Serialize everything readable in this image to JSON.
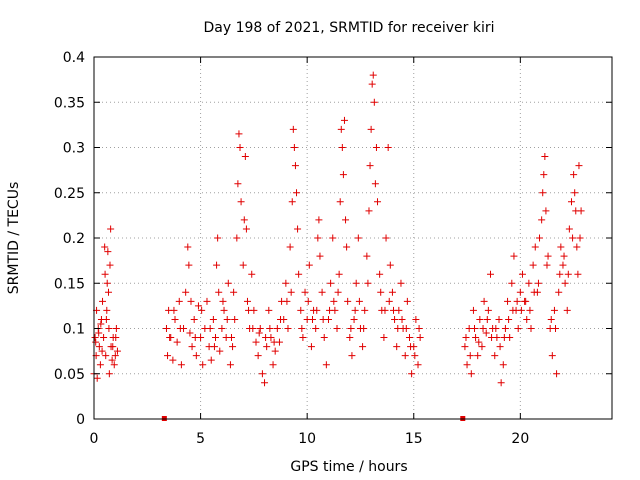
{
  "chart_data": {
    "type": "scatter",
    "title": "Day 198 of 2021, SRMTID for receiver kiri",
    "xlabel": "GPS time / hours",
    "ylabel": "SRMTID / TECUs",
    "xlim": [
      0,
      24.3
    ],
    "ylim": [
      0,
      0.4
    ],
    "xticks": [
      0,
      5,
      10,
      15,
      20
    ],
    "xtick_labels": [
      "0",
      "5",
      "10",
      "15",
      "20"
    ],
    "yticks": [
      0,
      0.05,
      0.1,
      0.15,
      0.2,
      0.25,
      0.3,
      0.35,
      0.4
    ],
    "ytick_labels": [
      "0",
      "0.05",
      "0.1",
      "0.15",
      "0.2",
      "0.25",
      "0.3",
      "0.35",
      "0.4"
    ],
    "grid": true,
    "marker": "+",
    "color": "#e00000",
    "series": [
      {
        "name": "SRMTID",
        "points": [
          [
            0.0,
            0.05
          ],
          [
            0.05,
            0.09
          ],
          [
            0.1,
            0.07
          ],
          [
            0.12,
            0.12
          ],
          [
            0.15,
            0.045
          ],
          [
            0.2,
            0.1
          ],
          [
            0.25,
            0.08
          ],
          [
            0.3,
            0.06
          ],
          [
            0.35,
            0.11
          ],
          [
            0.4,
            0.13
          ],
          [
            0.45,
            0.09
          ],
          [
            0.5,
            0.19
          ],
          [
            0.52,
            0.16
          ],
          [
            0.55,
            0.07
          ],
          [
            0.6,
            0.12
          ],
          [
            0.62,
            0.15
          ],
          [
            0.65,
            0.185
          ],
          [
            0.7,
            0.1
          ],
          [
            0.72,
            0.05
          ],
          [
            0.75,
            0.17
          ],
          [
            0.78,
            0.21
          ],
          [
            0.8,
            0.08
          ],
          [
            0.85,
            0.065
          ],
          [
            0.9,
            0.09
          ],
          [
            0.95,
            0.06
          ],
          [
            1.0,
            0.07
          ],
          [
            1.05,
            0.1
          ],
          [
            1.1,
            0.075
          ],
          [
            0.32,
            0.105
          ],
          [
            0.68,
            0.14
          ],
          [
            3.4,
            0.1
          ],
          [
            3.45,
            0.07
          ],
          [
            3.5,
            0.12
          ],
          [
            3.6,
            0.09
          ],
          [
            3.7,
            0.065
          ],
          [
            3.8,
            0.11
          ],
          [
            3.9,
            0.085
          ],
          [
            4.0,
            0.13
          ],
          [
            4.1,
            0.06
          ],
          [
            4.2,
            0.1
          ],
          [
            4.3,
            0.14
          ],
          [
            4.4,
            0.19
          ],
          [
            4.45,
            0.17
          ],
          [
            4.5,
            0.095
          ],
          [
            4.6,
            0.08
          ],
          [
            4.7,
            0.11
          ],
          [
            4.8,
            0.07
          ],
          [
            4.9,
            0.125
          ],
          [
            5.0,
            0.09
          ],
          [
            5.1,
            0.06
          ],
          [
            5.2,
            0.1
          ],
          [
            5.3,
            0.13
          ],
          [
            5.4,
            0.08
          ],
          [
            5.5,
            0.065
          ],
          [
            5.6,
            0.11
          ],
          [
            5.7,
            0.09
          ],
          [
            5.75,
            0.17
          ],
          [
            5.8,
            0.2
          ],
          [
            5.85,
            0.14
          ],
          [
            5.9,
            0.075
          ],
          [
            6.0,
            0.1
          ],
          [
            6.1,
            0.12
          ],
          [
            6.2,
            0.09
          ],
          [
            6.3,
            0.15
          ],
          [
            6.4,
            0.06
          ],
          [
            6.5,
            0.08
          ],
          [
            6.6,
            0.11
          ],
          [
            6.7,
            0.2
          ],
          [
            6.75,
            0.26
          ],
          [
            6.8,
            0.315
          ],
          [
            6.85,
            0.3
          ],
          [
            6.9,
            0.24
          ],
          [
            7.0,
            0.17
          ],
          [
            7.05,
            0.22
          ],
          [
            7.1,
            0.29
          ],
          [
            7.15,
            0.21
          ],
          [
            7.2,
            0.13
          ],
          [
            7.3,
            0.1
          ],
          [
            7.4,
            0.16
          ],
          [
            7.5,
            0.12
          ],
          [
            7.6,
            0.085
          ],
          [
            7.7,
            0.07
          ],
          [
            7.8,
            0.1
          ],
          [
            7.9,
            0.05
          ],
          [
            8.0,
            0.04
          ],
          [
            8.1,
            0.08
          ],
          [
            8.2,
            0.12
          ],
          [
            8.3,
            0.09
          ],
          [
            8.4,
            0.06
          ],
          [
            8.5,
            0.075
          ],
          [
            8.6,
            0.1
          ],
          [
            8.7,
            0.085
          ],
          [
            8.8,
            0.13
          ],
          [
            8.9,
            0.11
          ],
          [
            9.0,
            0.15
          ],
          [
            9.1,
            0.1
          ],
          [
            9.2,
            0.19
          ],
          [
            9.3,
            0.24
          ],
          [
            9.35,
            0.32
          ],
          [
            9.4,
            0.3
          ],
          [
            9.45,
            0.28
          ],
          [
            9.5,
            0.25
          ],
          [
            9.55,
            0.21
          ],
          [
            9.6,
            0.16
          ],
          [
            9.7,
            0.12
          ],
          [
            9.8,
            0.09
          ],
          [
            9.9,
            0.14
          ],
          [
            10.0,
            0.11
          ],
          [
            10.1,
            0.17
          ],
          [
            10.2,
            0.08
          ],
          [
            10.3,
            0.12
          ],
          [
            10.4,
            0.1
          ],
          [
            10.5,
            0.2
          ],
          [
            10.55,
            0.22
          ],
          [
            10.6,
            0.18
          ],
          [
            10.7,
            0.14
          ],
          [
            10.8,
            0.09
          ],
          [
            10.9,
            0.06
          ],
          [
            11.0,
            0.11
          ],
          [
            11.1,
            0.15
          ],
          [
            11.2,
            0.2
          ],
          [
            11.3,
            0.12
          ],
          [
            11.4,
            0.1
          ],
          [
            11.5,
            0.16
          ],
          [
            11.55,
            0.24
          ],
          [
            11.6,
            0.32
          ],
          [
            11.65,
            0.3
          ],
          [
            11.7,
            0.27
          ],
          [
            11.75,
            0.33
          ],
          [
            11.8,
            0.22
          ],
          [
            11.85,
            0.19
          ],
          [
            11.9,
            0.13
          ],
          [
            12.0,
            0.09
          ],
          [
            12.1,
            0.07
          ],
          [
            12.2,
            0.11
          ],
          [
            12.3,
            0.15
          ],
          [
            12.4,
            0.2
          ],
          [
            12.5,
            0.1
          ],
          [
            12.6,
            0.08
          ],
          [
            12.7,
            0.12
          ],
          [
            12.8,
            0.18
          ],
          [
            12.9,
            0.23
          ],
          [
            12.95,
            0.28
          ],
          [
            13.0,
            0.32
          ],
          [
            13.05,
            0.37
          ],
          [
            13.1,
            0.38
          ],
          [
            13.15,
            0.35
          ],
          [
            13.2,
            0.26
          ],
          [
            13.25,
            0.3
          ],
          [
            13.3,
            0.24
          ],
          [
            13.4,
            0.16
          ],
          [
            13.5,
            0.12
          ],
          [
            13.6,
            0.09
          ],
          [
            13.7,
            0.2
          ],
          [
            13.8,
            0.3
          ],
          [
            13.9,
            0.17
          ],
          [
            14.0,
            0.14
          ],
          [
            14.1,
            0.11
          ],
          [
            14.2,
            0.08
          ],
          [
            14.3,
            0.12
          ],
          [
            14.4,
            0.15
          ],
          [
            14.5,
            0.1
          ],
          [
            14.6,
            0.07
          ],
          [
            14.7,
            0.13
          ],
          [
            14.8,
            0.09
          ],
          [
            14.9,
            0.05
          ],
          [
            15.0,
            0.08
          ],
          [
            15.1,
            0.11
          ],
          [
            15.2,
            0.06
          ],
          [
            15.3,
            0.09
          ],
          [
            17.4,
            0.08
          ],
          [
            17.5,
            0.06
          ],
          [
            17.6,
            0.1
          ],
          [
            17.7,
            0.05
          ],
          [
            17.8,
            0.12
          ],
          [
            17.9,
            0.09
          ],
          [
            18.0,
            0.07
          ],
          [
            18.1,
            0.11
          ],
          [
            18.2,
            0.08
          ],
          [
            18.3,
            0.13
          ],
          [
            18.4,
            0.095
          ],
          [
            18.5,
            0.12
          ],
          [
            18.6,
            0.16
          ],
          [
            18.7,
            0.1
          ],
          [
            18.8,
            0.07
          ],
          [
            18.9,
            0.09
          ],
          [
            19.0,
            0.11
          ],
          [
            19.1,
            0.04
          ],
          [
            19.2,
            0.06
          ],
          [
            19.3,
            0.1
          ],
          [
            19.4,
            0.13
          ],
          [
            19.5,
            0.09
          ],
          [
            19.6,
            0.15
          ],
          [
            19.7,
            0.18
          ],
          [
            19.8,
            0.12
          ],
          [
            19.9,
            0.1
          ],
          [
            20.0,
            0.14
          ],
          [
            20.1,
            0.16
          ],
          [
            20.2,
            0.13
          ],
          [
            20.3,
            0.11
          ],
          [
            20.4,
            0.15
          ],
          [
            20.5,
            0.1
          ],
          [
            20.6,
            0.17
          ],
          [
            20.7,
            0.19
          ],
          [
            20.8,
            0.14
          ],
          [
            20.9,
            0.2
          ],
          [
            21.0,
            0.22
          ],
          [
            21.05,
            0.25
          ],
          [
            21.1,
            0.27
          ],
          [
            21.15,
            0.29
          ],
          [
            21.2,
            0.23
          ],
          [
            21.3,
            0.18
          ],
          [
            21.4,
            0.1
          ],
          [
            21.5,
            0.07
          ],
          [
            21.6,
            0.12
          ],
          [
            21.7,
            0.05
          ],
          [
            21.8,
            0.14
          ],
          [
            21.9,
            0.19
          ],
          [
            22.0,
            0.17
          ],
          [
            22.1,
            0.15
          ],
          [
            22.2,
            0.12
          ],
          [
            22.3,
            0.21
          ],
          [
            22.4,
            0.24
          ],
          [
            22.5,
            0.27
          ],
          [
            22.55,
            0.25
          ],
          [
            22.6,
            0.23
          ],
          [
            22.65,
            0.19
          ],
          [
            22.7,
            0.16
          ],
          [
            22.75,
            0.28
          ],
          [
            22.8,
            0.2
          ],
          [
            0.08,
            0.085
          ],
          [
            0.22,
            0.095
          ],
          [
            0.38,
            0.075
          ],
          [
            0.58,
            0.11
          ],
          [
            0.88,
            0.08
          ],
          [
            1.02,
            0.09
          ],
          [
            3.55,
            0.09
          ],
          [
            3.75,
            0.12
          ],
          [
            4.05,
            0.1
          ],
          [
            4.55,
            0.13
          ],
          [
            4.75,
            0.09
          ],
          [
            5.05,
            0.12
          ],
          [
            5.45,
            0.1
          ],
          [
            5.65,
            0.08
          ],
          [
            6.05,
            0.13
          ],
          [
            6.25,
            0.11
          ],
          [
            6.45,
            0.09
          ],
          [
            6.55,
            0.14
          ],
          [
            7.25,
            0.12
          ],
          [
            7.45,
            0.1
          ],
          [
            7.75,
            0.095
          ],
          [
            8.05,
            0.09
          ],
          [
            8.25,
            0.1
          ],
          [
            8.45,
            0.085
          ],
          [
            8.75,
            0.11
          ],
          [
            9.05,
            0.13
          ],
          [
            9.25,
            0.14
          ],
          [
            9.75,
            0.1
          ],
          [
            10.05,
            0.13
          ],
          [
            10.25,
            0.11
          ],
          [
            10.45,
            0.12
          ],
          [
            10.75,
            0.11
          ],
          [
            11.05,
            0.12
          ],
          [
            11.25,
            0.13
          ],
          [
            11.45,
            0.14
          ],
          [
            12.05,
            0.1
          ],
          [
            12.25,
            0.12
          ],
          [
            12.45,
            0.13
          ],
          [
            12.65,
            0.1
          ],
          [
            12.85,
            0.15
          ],
          [
            13.45,
            0.14
          ],
          [
            13.65,
            0.12
          ],
          [
            13.85,
            0.13
          ],
          [
            14.05,
            0.12
          ],
          [
            14.25,
            0.1
          ],
          [
            14.45,
            0.11
          ],
          [
            14.65,
            0.1
          ],
          [
            14.85,
            0.08
          ],
          [
            15.05,
            0.07
          ],
          [
            15.25,
            0.1
          ],
          [
            17.45,
            0.09
          ],
          [
            17.65,
            0.07
          ],
          [
            17.85,
            0.1
          ],
          [
            18.05,
            0.085
          ],
          [
            18.25,
            0.1
          ],
          [
            18.45,
            0.11
          ],
          [
            18.65,
            0.09
          ],
          [
            18.85,
            0.1
          ],
          [
            19.05,
            0.08
          ],
          [
            19.25,
            0.09
          ],
          [
            19.45,
            0.11
          ],
          [
            19.65,
            0.12
          ],
          [
            19.85,
            0.13
          ],
          [
            20.05,
            0.12
          ],
          [
            20.25,
            0.13
          ],
          [
            20.45,
            0.12
          ],
          [
            20.65,
            0.14
          ],
          [
            20.85,
            0.15
          ],
          [
            21.25,
            0.17
          ],
          [
            21.45,
            0.11
          ],
          [
            21.65,
            0.1
          ],
          [
            21.85,
            0.16
          ],
          [
            22.05,
            0.18
          ],
          [
            22.25,
            0.16
          ],
          [
            22.45,
            0.2
          ],
          [
            22.85,
            0.23
          ]
        ]
      }
    ],
    "gap_markers": [
      3.3,
      17.3
    ]
  }
}
